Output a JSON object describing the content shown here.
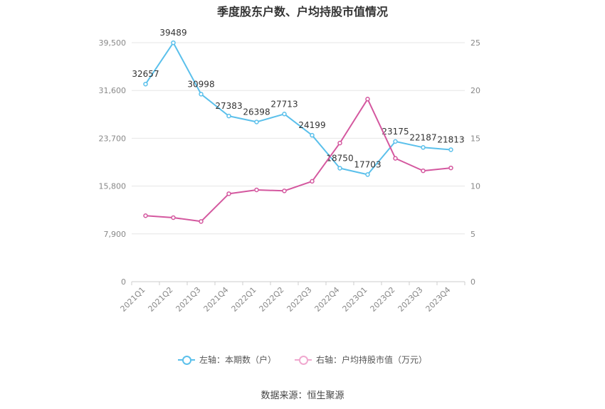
{
  "chart_data": {
    "type": "line",
    "title": "季度股东户数、户均持股市值情况",
    "categories": [
      "2021Q1",
      "2021Q2",
      "2021Q3",
      "2021Q4",
      "2022Q1",
      "2022Q2",
      "2022Q3",
      "2022Q4",
      "2023Q1",
      "2023Q2",
      "2023Q3",
      "2023Q4"
    ],
    "left_axis": {
      "min": 0,
      "max": 39500,
      "ticks": [
        0,
        7900,
        15800,
        23700,
        31600,
        39500
      ],
      "tick_labels": [
        "0",
        "7,900",
        "15,800",
        "23,700",
        "31,600",
        "39,500"
      ]
    },
    "right_axis": {
      "min": 0,
      "max": 25,
      "ticks": [
        0,
        5,
        10,
        15,
        20,
        25
      ],
      "tick_labels": [
        "0",
        "5",
        "10",
        "15",
        "20",
        "25"
      ]
    },
    "series": [
      {
        "name": "左轴：本期数（户）",
        "axis": "left",
        "color": "#5bc0eb",
        "values": [
          32657,
          39489,
          30998,
          27383,
          26398,
          27713,
          24199,
          18750,
          17703,
          23175,
          22187,
          21813
        ],
        "labels": [
          "32657",
          "39489",
          "30998",
          "27383",
          "26398",
          "27713",
          "24199",
          "18750",
          "17703",
          "23175",
          "22187",
          "21813"
        ]
      },
      {
        "name": "右轴：户均持股市值（万元）",
        "axis": "right",
        "color": "#d4589f",
        "values": [
          6.9,
          6.7,
          6.3,
          9.2,
          9.6,
          9.5,
          10.5,
          14.5,
          19.1,
          12.9,
          11.6,
          11.9
        ]
      }
    ],
    "grid": true,
    "legend_position": "bottom"
  },
  "source": "数据来源：恒生聚源"
}
